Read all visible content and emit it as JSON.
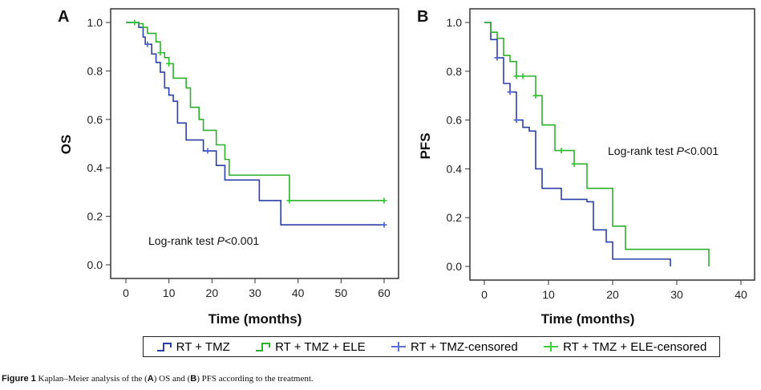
{
  "caption": {
    "prefix": "Figure 1",
    "text_1": " Kaplan–Meier analysis of the (",
    "a": "A",
    "text_2": ") OS and (",
    "b": "B",
    "text_3": ") PFS according to the treatment."
  },
  "legend": [
    "RT + TMZ",
    "RT + TMZ + ELE",
    "RT + TMZ-censored",
    "RT + TMZ + ELE-censored"
  ],
  "colors": {
    "rt_tmz": "#2b3fa8",
    "rt_tmz_ele": "#2db12d"
  },
  "chart_data": [
    {
      "type": "line",
      "panel": "A",
      "ylabel": "OS",
      "xlabel": "Time (months)",
      "xlim": [
        0,
        60
      ],
      "ylim": [
        0,
        1
      ],
      "xticks": [
        "0",
        "10",
        "20",
        "30",
        "40",
        "50",
        "60"
      ],
      "yticks": [
        "0.0",
        "0.2",
        "0.4",
        "0.6",
        "0.8",
        "1.0"
      ],
      "annotation": {
        "pre": "Log-rank test ",
        "p": "P",
        "post": "<0.001"
      },
      "series": [
        {
          "name": "RT + TMZ",
          "steps": [
            [
              0,
              1.0
            ],
            [
              3,
              0.98
            ],
            [
              4,
              0.94
            ],
            [
              4.5,
              0.91
            ],
            [
              6,
              0.87
            ],
            [
              7,
              0.835
            ],
            [
              8,
              0.795
            ],
            [
              9,
              0.73
            ],
            [
              10,
              0.7
            ],
            [
              11,
              0.675
            ],
            [
              12,
              0.585
            ],
            [
              14,
              0.515
            ],
            [
              18,
              0.47
            ],
            [
              21,
              0.41
            ],
            [
              23,
              0.35
            ],
            [
              31,
              0.265
            ],
            [
              36,
              0.165
            ]
          ],
          "end": 60,
          "censored": [
            5,
            19,
            60
          ]
        },
        {
          "name": "RT + TMZ + ELE",
          "steps": [
            [
              0,
              1.0
            ],
            [
              3,
              0.995
            ],
            [
              4,
              0.98
            ],
            [
              5,
              0.955
            ],
            [
              7,
              0.92
            ],
            [
              8,
              0.875
            ],
            [
              9,
              0.855
            ],
            [
              10,
              0.83
            ],
            [
              11,
              0.77
            ],
            [
              14,
              0.73
            ],
            [
              15,
              0.65
            ],
            [
              17,
              0.6
            ],
            [
              18,
              0.555
            ],
            [
              21,
              0.495
            ],
            [
              23,
              0.435
            ],
            [
              24,
              0.37
            ],
            [
              38,
              0.265
            ]
          ],
          "end": 60,
          "censored": [
            2,
            8,
            10,
            38,
            60
          ]
        }
      ]
    },
    {
      "type": "line",
      "panel": "B",
      "ylabel": "PFS",
      "xlabel": "Time (months)",
      "xlim": [
        0,
        40
      ],
      "ylim": [
        0,
        1
      ],
      "xticks": [
        "0",
        "10",
        "20",
        "30",
        "40"
      ],
      "yticks": [
        "0.0",
        "0.2",
        "0.4",
        "0.6",
        "0.8",
        "1.0"
      ],
      "annotation": {
        "pre": "Log-rank test ",
        "p": "P",
        "post": "<0.001"
      },
      "series": [
        {
          "name": "RT + TMZ",
          "steps": [
            [
              0,
              1.0
            ],
            [
              1,
              0.93
            ],
            [
              2,
              0.855
            ],
            [
              3,
              0.75
            ],
            [
              4,
              0.715
            ],
            [
              5,
              0.6
            ],
            [
              6,
              0.57
            ],
            [
              7,
              0.555
            ],
            [
              8,
              0.4
            ],
            [
              9,
              0.32
            ],
            [
              12,
              0.275
            ],
            [
              16,
              0.265
            ],
            [
              17,
              0.15
            ],
            [
              19,
              0.1
            ],
            [
              20,
              0.03
            ],
            [
              29,
              0.0
            ]
          ],
          "end": 29,
          "censored": [
            2,
            4,
            5
          ]
        },
        {
          "name": "RT + TMZ + ELE",
          "steps": [
            [
              0,
              1.0
            ],
            [
              1,
              0.96
            ],
            [
              2,
              0.935
            ],
            [
              3,
              0.865
            ],
            [
              4,
              0.84
            ],
            [
              5,
              0.78
            ],
            [
              8,
              0.7
            ],
            [
              9,
              0.58
            ],
            [
              11,
              0.475
            ],
            [
              14,
              0.42
            ],
            [
              16,
              0.32
            ],
            [
              20,
              0.165
            ],
            [
              22,
              0.07
            ],
            [
              35,
              0.0
            ]
          ],
          "end": 35,
          "censored": [
            5,
            6,
            8,
            12,
            14
          ]
        }
      ]
    }
  ]
}
